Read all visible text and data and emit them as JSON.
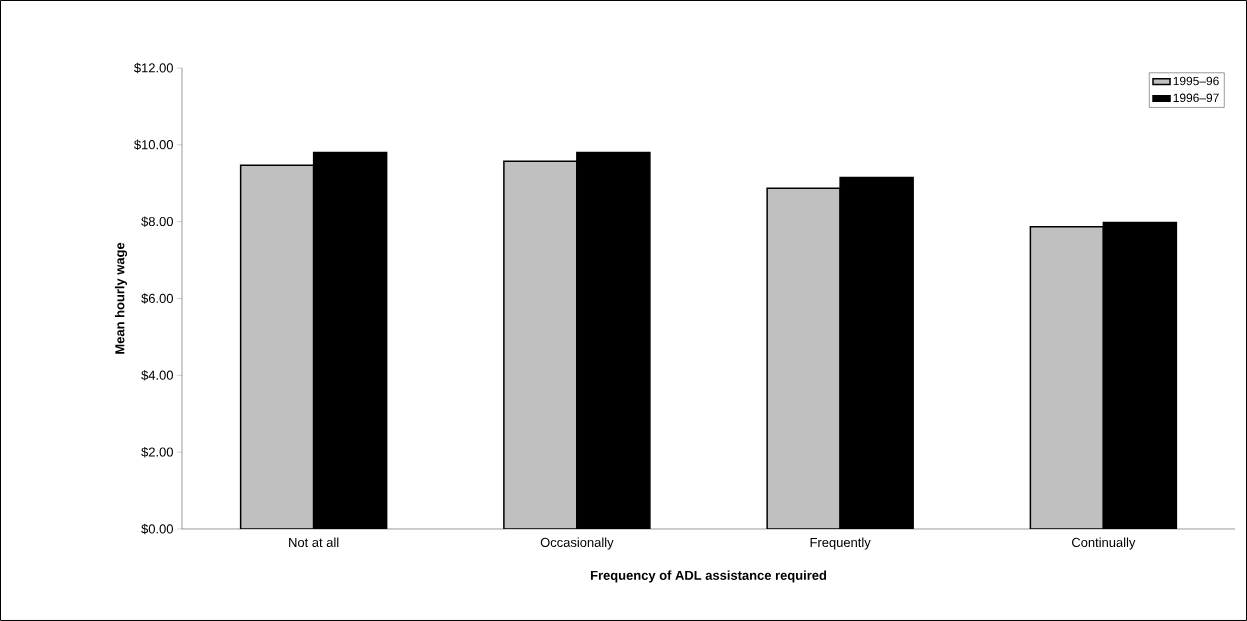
{
  "chart_data": {
    "type": "bar",
    "xlabel": "Frequency of ADL assistance required",
    "ylabel": "Mean hourly wage",
    "categories": [
      "Not at all",
      "Occasionally",
      "Frequently",
      "Continually"
    ],
    "series": [
      {
        "name": "1995–96",
        "color": "#c0c0c0",
        "values": [
          9.47,
          9.57,
          8.87,
          7.87
        ]
      },
      {
        "name": "1996–97",
        "color": "#000000",
        "values": [
          9.8,
          9.8,
          9.15,
          7.98
        ]
      }
    ],
    "ylim": [
      0,
      12
    ],
    "yticks": [
      {
        "value": 0,
        "label": "$0.00"
      },
      {
        "value": 2,
        "label": "$2.00"
      },
      {
        "value": 4,
        "label": "$4.00"
      },
      {
        "value": 6,
        "label": "$6.00"
      },
      {
        "value": 8,
        "label": "$8.00"
      },
      {
        "value": 10,
        "label": "$10.00"
      },
      {
        "value": 12,
        "label": "$12.00"
      }
    ],
    "grid": false,
    "legend": "top right"
  }
}
